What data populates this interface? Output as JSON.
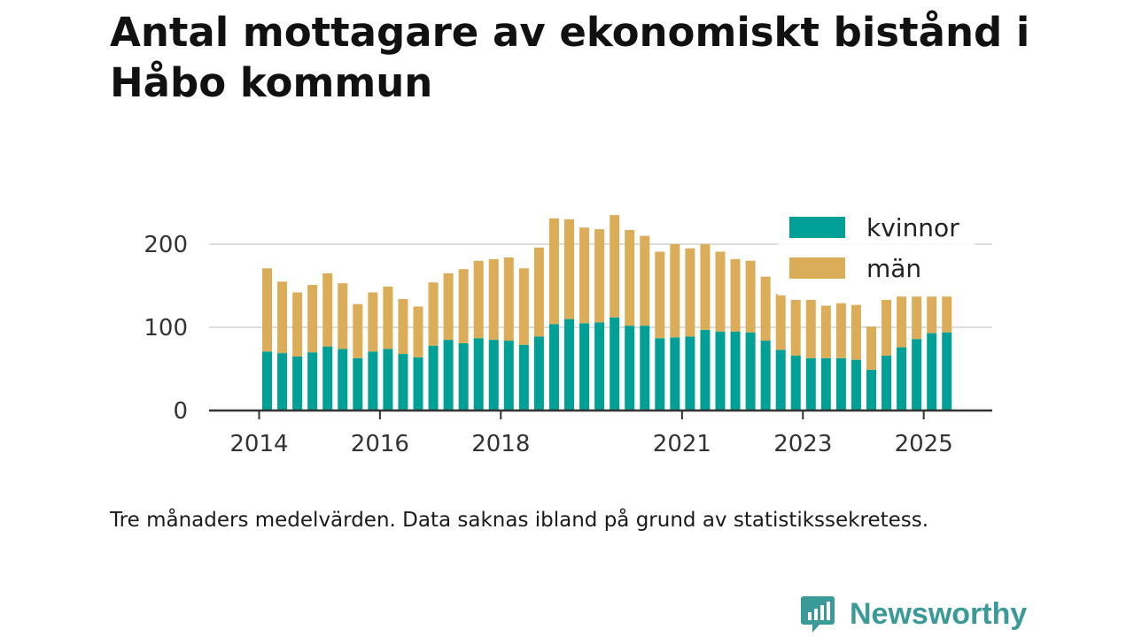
{
  "title": "Antal mottagare av ekonomiskt bistånd i Håbo kommun",
  "caption": "Tre månaders medelvärden. Data saknas ibland på grund av statistikssekretess.",
  "brand": "Newsworthy",
  "colors": {
    "kvinnor": "#00a096",
    "man": "#dcad58",
    "grid": "#dddddd",
    "axis": "#333333",
    "text": "#333333",
    "brand": "#3a9a98"
  },
  "chart_data": {
    "type": "bar",
    "stacked": true,
    "title": "Antal mottagare av ekonomiskt bistånd i Håbo kommun",
    "xlabel": "",
    "ylabel": "",
    "ylim": [
      0,
      240
    ],
    "yticks": [
      0,
      100,
      200
    ],
    "xtick_labels": [
      {
        "label": "2014",
        "index": -1
      },
      {
        "label": "2016",
        "index": 7
      },
      {
        "label": "2018",
        "index": 15
      },
      {
        "label": "2021",
        "index": 27
      },
      {
        "label": "2023",
        "index": 35
      },
      {
        "label": "2025",
        "index": 43
      }
    ],
    "legend": [
      "kvinnor",
      "män"
    ],
    "legend_position": "top-right",
    "categories": [
      "2014-Q2",
      "2014-Q3",
      "2014-Q4",
      "2015-Q1",
      "2015-Q2",
      "2015-Q3",
      "2015-Q4",
      "2016-Q1",
      "2016-Q2",
      "2016-Q3",
      "2016-Q4",
      "2017-Q1",
      "2017-Q2",
      "2017-Q3",
      "2017-Q4",
      "2018-Q1",
      "2018-Q2",
      "2018-Q3",
      "2018-Q4",
      "2019-Q1",
      "2019-Q2",
      "2019-Q3",
      "2019-Q4",
      "2020-Q1",
      "2020-Q2",
      "2020-Q3",
      "2020-Q4",
      "2021-Q1",
      "2021-Q2",
      "2021-Q3",
      "2021-Q4",
      "2022-Q1",
      "2022-Q2",
      "2022-Q3",
      "2022-Q4",
      "2023-Q1",
      "2023-Q2",
      "2023-Q3",
      "2023-Q4",
      "2024-Q1",
      "2024-Q2",
      "2024-Q3",
      "2024-Q4",
      "2025-Q1",
      "2025-Q2",
      "2025-Q3"
    ],
    "series": [
      {
        "name": "kvinnor",
        "values": [
          71,
          69,
          65,
          70,
          77,
          74,
          63,
          71,
          74,
          68,
          64,
          78,
          85,
          81,
          87,
          85,
          84,
          79,
          89,
          104,
          110,
          105,
          106,
          112,
          102,
          102,
          87,
          88,
          89,
          97,
          95,
          95,
          94,
          84,
          73,
          66,
          63,
          63,
          63,
          61,
          49,
          66,
          76,
          86,
          93,
          94
        ]
      },
      {
        "name": "män",
        "values": [
          100,
          86,
          77,
          81,
          88,
          79,
          65,
          71,
          75,
          66,
          61,
          76,
          80,
          89,
          93,
          97,
          100,
          92,
          107,
          127,
          120,
          115,
          112,
          123,
          115,
          108,
          104,
          112,
          106,
          103,
          96,
          87,
          86,
          77,
          67,
          67,
          70,
          63,
          66,
          66,
          52,
          67,
          61,
          51,
          44,
          43
        ]
      }
    ]
  }
}
